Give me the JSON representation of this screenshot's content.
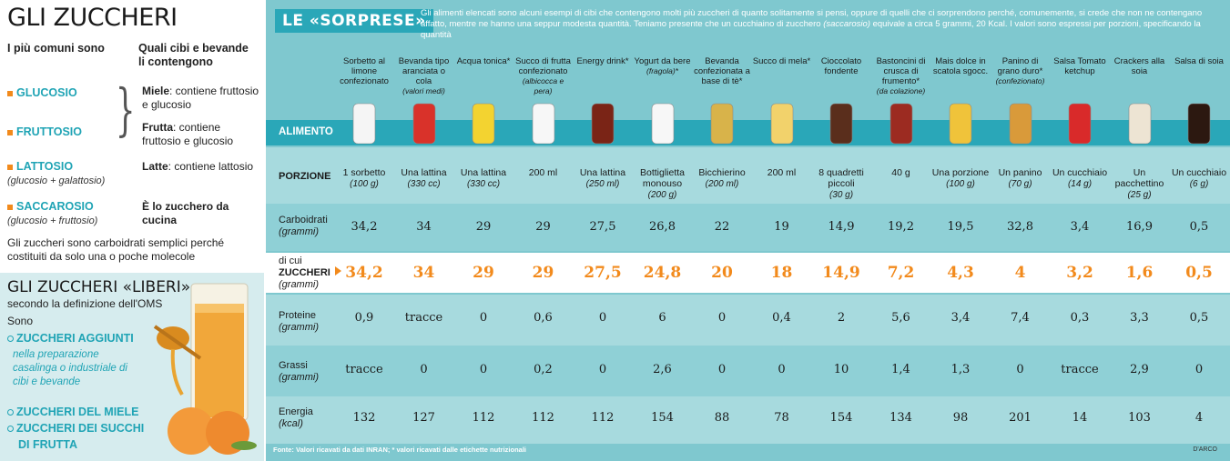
{
  "left": {
    "title": "GLI ZUCCHERI",
    "head1": "I più comuni sono",
    "head2": "Quali cibi e bevande li contengono",
    "sugars": [
      {
        "name": "GLUCOSIO",
        "sub": ""
      },
      {
        "name": "FRUTTOSIO",
        "sub": ""
      },
      {
        "name": "LATTOSIO",
        "sub": "(glucosio + galattosio)"
      },
      {
        "name": "SACCAROSIO",
        "sub": "(glucosio + fruttosio)"
      }
    ],
    "sources": [
      {
        "bold": "Miele",
        "rest": ": contiene fruttosio e glucosio"
      },
      {
        "bold": "Frutta",
        "rest": ": contiene fruttosio e glucosio"
      },
      {
        "bold": "Latte",
        "rest": ": contiene lattosio"
      },
      {
        "bold": "È lo zucchero da cucina",
        "rest": ""
      }
    ],
    "note": "Gli zuccheri sono carboidrati semplici perché costituiti da solo una o poche molecole",
    "liberi": {
      "title": "GLI ZUCCHERI «LIBERI»",
      "sub": "secondo la definizione dell'OMS",
      "sono": "Sono",
      "item1": "ZUCCHERI AGGIUNTI",
      "desc1": "nella preparazione casalinga o industriale di cibi e bevande",
      "item2": "ZUCCHERI DEL MIELE",
      "item3a": "ZUCCHERI DEI SUCCHI",
      "item3b": "DI FRUTTA"
    }
  },
  "right": {
    "title": "LE «SORPRESE»",
    "intro_a": "Gli alimenti elencati sono alcuni esempi di cibi che contengono molti più zuccheri di quanto solitamente si pensi, oppure di quelli che ci sorprendono perché, comunemente, si crede che non ne contengano affatto, mentre ne hanno una seppur modesta quantità. Teniamo presente che un cucchiaino di zucchero ",
    "intro_i": "(saccarosio)",
    "intro_b": " equivale a circa 5 grammi, 20 Kcal. I valori sono espressi per porzioni, specificando la quantità",
    "labels": {
      "alimento": "ALIMENTO",
      "porzione": "PORZIONE",
      "carbo": "Carboidrati",
      "carbo_u": "(grammi)",
      "dicui": "di cui",
      "zuccheri": "ZUCCHERI",
      "zuccheri_u": "(grammi)",
      "proteine": "Proteine",
      "proteine_u": "(grammi)",
      "grassi": "Grassi",
      "grassi_u": "(grammi)",
      "energia": "Energia",
      "energia_u": "(kcal)"
    },
    "foot": "Fonte: Valori ricavati da dati INRAN; * valori ricavati dalle etichette nutrizionali",
    "credit": "D'ARCO"
  },
  "foods": [
    {
      "name": "Sorbetto al limone confezionato",
      "note": "",
      "portion": "1 sorbetto",
      "portion_q": "(100 g)",
      "carbo": "34,2",
      "zuccheri": "34,2",
      "proteine": "0,9",
      "grassi": "tracce",
      "energia": "132"
    },
    {
      "name": "Bevanda tipo aranciata o cola",
      "note": "(valori medi)",
      "portion": "Una lattina",
      "portion_q": "(330 cc)",
      "carbo": "34",
      "zuccheri": "34",
      "proteine": "tracce",
      "grassi": "0",
      "energia": "127"
    },
    {
      "name": "Acqua tonica*",
      "note": "",
      "portion": "Una lattina",
      "portion_q": "(330 cc)",
      "carbo": "29",
      "zuccheri": "29",
      "proteine": "0",
      "grassi": "0",
      "energia": "112"
    },
    {
      "name": "Succo di frutta confezionato",
      "note": "(albicocca e pera)",
      "portion": "200 ml",
      "portion_q": "",
      "carbo": "29",
      "zuccheri": "29",
      "proteine": "0,6",
      "grassi": "0,2",
      "energia": "112"
    },
    {
      "name": "Energy drink*",
      "note": "",
      "portion": "Una lattina",
      "portion_q": "(250 ml)",
      "carbo": "27,5",
      "zuccheri": "27,5",
      "proteine": "0",
      "grassi": "0",
      "energia": "112"
    },
    {
      "name": "Yogurt da bere",
      "note": "(fragola)*",
      "portion": "Bottiglietta monouso",
      "portion_q": "(200 g)",
      "carbo": "26,8",
      "zuccheri": "24,8",
      "proteine": "6",
      "grassi": "2,6",
      "energia": "154"
    },
    {
      "name": "Bevanda confezionata a base di tè*",
      "note": "",
      "portion": "Bicchierino",
      "portion_q": "(200 ml)",
      "carbo": "22",
      "zuccheri": "20",
      "proteine": "0",
      "grassi": "0",
      "energia": "88"
    },
    {
      "name": "Succo di mela*",
      "note": "",
      "portion": "200 ml",
      "portion_q": "",
      "carbo": "19",
      "zuccheri": "18",
      "proteine": "0,4",
      "grassi": "0",
      "energia": "78"
    },
    {
      "name": "Cioccolato fondente",
      "note": "",
      "portion": "8 quadretti piccoli",
      "portion_q": "(30 g)",
      "carbo": "14,9",
      "zuccheri": "14,9",
      "proteine": "2",
      "grassi": "10",
      "energia": "154"
    },
    {
      "name": "Bastoncini di crusca di frumento*",
      "note": "(da colazione)",
      "portion": "40 g",
      "portion_q": "",
      "carbo": "19,2",
      "zuccheri": "7,2",
      "proteine": "5,6",
      "grassi": "1,4",
      "energia": "134"
    },
    {
      "name": "Mais dolce in scatola sgocc.",
      "note": "",
      "portion": "Una porzione",
      "portion_q": "(100 g)",
      "carbo": "19,5",
      "zuccheri": "4,3",
      "proteine": "3,4",
      "grassi": "1,3",
      "energia": "98"
    },
    {
      "name": "Panino di grano duro*",
      "note": "(confezionato)",
      "portion": "Un panino",
      "portion_q": "(70 g)",
      "carbo": "32,8",
      "zuccheri": "4",
      "proteine": "7,4",
      "grassi": "0",
      "energia": "201"
    },
    {
      "name": "Salsa Tomato ketchup",
      "note": "",
      "portion": "Un cucchiaio",
      "portion_q": "(14 g)",
      "carbo": "3,4",
      "zuccheri": "3,2",
      "proteine": "0,3",
      "grassi": "tracce",
      "energia": "14"
    },
    {
      "name": "Crackers alla soia",
      "note": "",
      "portion": "Un pacchettino",
      "portion_q": "(25 g)",
      "carbo": "16,9",
      "zuccheri": "1,6",
      "proteine": "3,3",
      "grassi": "2,9",
      "energia": "103"
    },
    {
      "name": "Salsa di soia",
      "note": "",
      "portion": "Un cucchiaio",
      "portion_q": "(6 g)",
      "carbo": "0,5",
      "zuccheri": "0,5",
      "proteine": "0,5",
      "grassi": "0",
      "energia": "4"
    }
  ],
  "icons": [
    "sorbet-bottle-icon",
    "soda-can-icon",
    "tonic-can-icon",
    "juice-carton-icon",
    "energy-drink-icon",
    "yogurt-bottle-icon",
    "tea-cup-icon",
    "apple-juice-icon",
    "chocolate-icon",
    "bran-cereal-icon",
    "corn-icon",
    "bread-roll-icon",
    "ketchup-icon",
    "crackers-icon",
    "soy-sauce-icon"
  ],
  "colors": {
    "teal": "#2aa7b8",
    "panel": "#7fc8cf",
    "orange": "#f28a1c",
    "light": "#d6ecee"
  }
}
